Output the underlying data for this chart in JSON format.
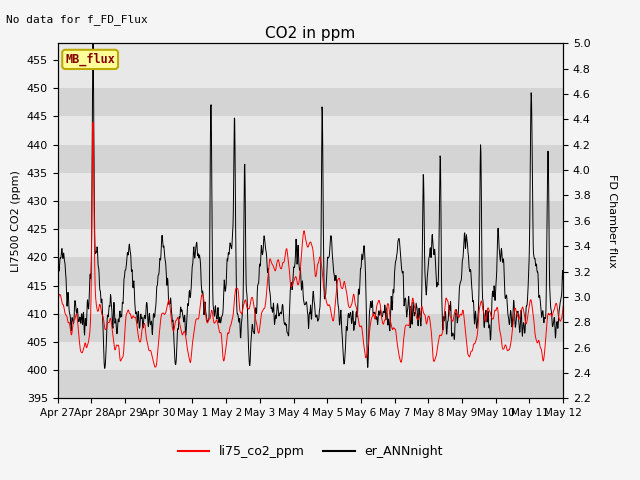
{
  "title": "CO2 in ppm",
  "ylabel_left": "LI7500 CO2 (ppm)",
  "ylabel_right": "FD Chamber flux",
  "ylim_left": [
    395,
    458
  ],
  "ylim_right": [
    2.2,
    5.0
  ],
  "yticks_left": [
    395,
    400,
    405,
    410,
    415,
    420,
    425,
    430,
    435,
    440,
    445,
    450,
    455
  ],
  "yticks_right": [
    2.2,
    2.4,
    2.6,
    2.8,
    3.0,
    3.2,
    3.4,
    3.6,
    3.8,
    4.0,
    4.2,
    4.4,
    4.6,
    4.8,
    5.0
  ],
  "no_data_text": "No data for f_FD_Flux",
  "mb_flux_label": "MB_flux",
  "legend_red": "li75_co2_ppm",
  "legend_black": "er_ANNnight",
  "line_color_red": "#ff0000",
  "line_color_black": "#000000",
  "background_color": "#f5f5f5",
  "plot_bg_color": "#e8e8e8",
  "band_dark": "#d4d4d4",
  "band_light": "#e8e8e8",
  "mb_box_facecolor": "#ffff99",
  "mb_box_edgecolor": "#bbaa00",
  "mb_text_color": "#880000",
  "xtick_labels": [
    "Apr 27",
    "Apr 28",
    "Apr 29",
    "Apr 30",
    "May 1",
    "May 2",
    "May 3",
    "May 4",
    "May 5",
    "May 6",
    "May 7",
    "May 8",
    "May 9",
    "May 10",
    "May 11",
    "May 12"
  ],
  "num_points": 1500,
  "figsize": [
    6.4,
    4.8
  ],
  "dpi": 100
}
